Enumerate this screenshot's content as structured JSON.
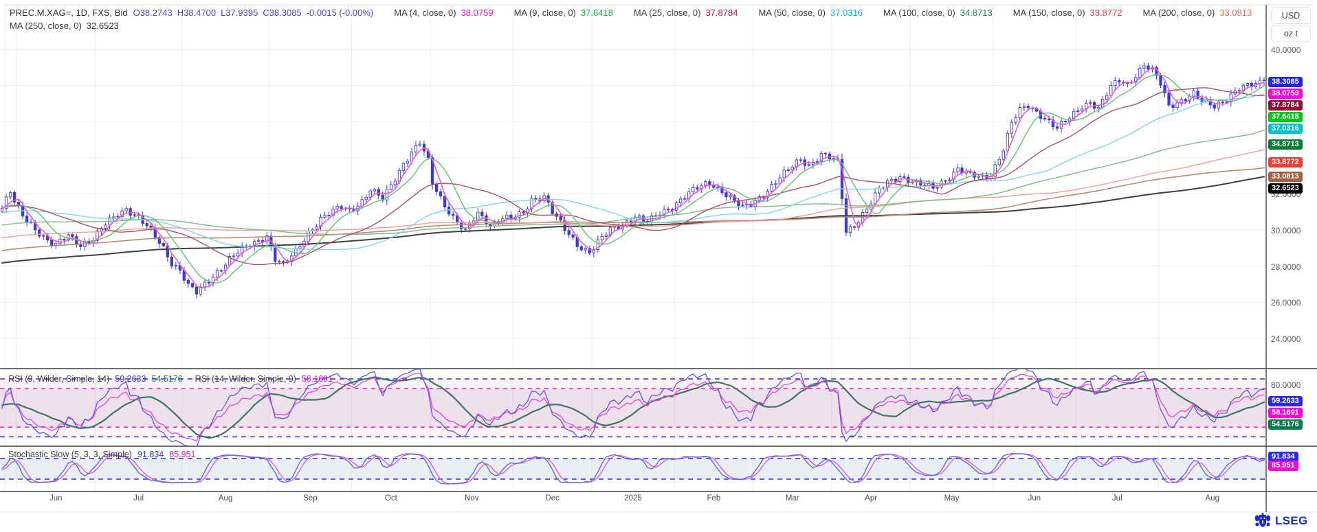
{
  "header": {
    "line1": [
      {
        "text": "PREC.M.XAG=, 1D, FXS, Bid",
        "color": "#2e2e2e",
        "gap": 8
      },
      {
        "text": "O38.2743",
        "color": "#4741e3",
        "gap": 7
      },
      {
        "text": "H38.4700",
        "color": "#4741e3",
        "gap": 7
      },
      {
        "text": "L37.9395",
        "color": "#4741e3",
        "gap": 7
      },
      {
        "text": "C38.3085",
        "color": "#4741e3",
        "gap": 7
      },
      {
        "text": "-0.0015 (-0.00%)",
        "color": "#4741e3",
        "gap": 30
      },
      {
        "text": "MA (4, close, 0)",
        "color": "#3a3a3a",
        "gap": 7
      },
      {
        "text": "38.0759",
        "color": "#f20fd4",
        "gap": 30
      },
      {
        "text": "MA (9, close, 0)",
        "color": "#3a3a3a",
        "gap": 7
      },
      {
        "text": "37.6418",
        "color": "#00b733",
        "gap": 30
      },
      {
        "text": "MA (25, close, 0)",
        "color": "#3a3a3a",
        "gap": 7
      },
      {
        "text": "37.8784",
        "color": "#c3103c",
        "gap": 30
      },
      {
        "text": "MA (50, close, 0)",
        "color": "#3a3a3a",
        "gap": 7
      },
      {
        "text": "37.0316",
        "color": "#00b6c9",
        "gap": 30
      },
      {
        "text": "MA (100, close, 0)",
        "color": "#3a3a3a",
        "gap": 7
      },
      {
        "text": "34.8713",
        "color": "#0c9140",
        "gap": 30
      },
      {
        "text": "MA (150, close, 0)",
        "color": "#3a3a3a",
        "gap": 7
      },
      {
        "text": "33.8772",
        "color": "#f04343",
        "gap": 30
      },
      {
        "text": "MA (200, close, 0)",
        "color": "#3a3a3a",
        "gap": 7
      },
      {
        "text": "33.0813",
        "color": "#e2714b",
        "gap": 0
      }
    ],
    "line2": [
      {
        "text": "MA (250, close, 0)",
        "color": "#3a3a3a",
        "gap": 7
      },
      {
        "text": "32.6523",
        "color": "#2e2e2e",
        "gap": 0
      }
    ]
  },
  "axis": {
    "currency": "USD",
    "unit": "oz t",
    "price_ticks": [
      {
        "label": "40.0000",
        "value": 40
      },
      {
        "label": "32.0000",
        "value": 32
      },
      {
        "label": "30.0000",
        "value": 30
      },
      {
        "label": "28.0000",
        "value": 28
      },
      {
        "label": "26.0000",
        "value": 26
      },
      {
        "label": "24.0000",
        "value": 24
      }
    ],
    "rsi_tick": {
      "label": "80.0000",
      "value": 80
    }
  },
  "badges": {
    "main": [
      {
        "label": "38.3085",
        "color": "#1f1fff"
      },
      {
        "label": "38.0759",
        "color": "#ff00e0"
      },
      {
        "label": "37.8784",
        "color": "#8e1236"
      },
      {
        "label": "37.6418",
        "color": "#00c614"
      },
      {
        "label": "37.0316",
        "color": "#00c3cf"
      },
      {
        "label": "34.8713",
        "color": "#067d33"
      },
      {
        "label": "33.8772",
        "color": "#f23c34"
      },
      {
        "label": "33.0813",
        "color": "#a65f45"
      },
      {
        "label": "32.6523",
        "color": "#000000"
      }
    ],
    "rsi": [
      {
        "label": "59.2633",
        "color": "#2a2af0"
      },
      {
        "label": "58.1691",
        "color": "#ff00dd"
      },
      {
        "label": "54.5176",
        "color": "#067d4a"
      }
    ],
    "stoch": [
      {
        "label": "91.834",
        "color": "#2a2af0"
      },
      {
        "label": "85.951",
        "color": "#ff00dd"
      }
    ]
  },
  "rsi_header": [
    {
      "text": "RSI (9, Wilder, Simple, 14)",
      "color": "#3c3c3c",
      "gap": 8
    },
    {
      "text": "59.2633",
      "color": "#2f2fe8",
      "gap": 8
    },
    {
      "text": "54.5176",
      "color": "#1d7a4e",
      "gap": 18
    },
    {
      "text": "RSI (14, Wilder, Simple, 9)",
      "color": "#3c3c3c",
      "gap": 8
    },
    {
      "text": "58.1691",
      "color": "#ea16ca",
      "gap": 0
    }
  ],
  "stoch_header": [
    {
      "text": "Stochastic Slow (5, 3, 3, Simple)",
      "color": "#3c3c3c",
      "gap": 8
    },
    {
      "text": "91.834",
      "color": "#2f2fe8",
      "gap": 8
    },
    {
      "text": "85.951",
      "color": "#ea16ca",
      "gap": 0
    }
  ],
  "logo": {
    "text": "LSEG"
  },
  "chart_data": {
    "type": "candlestick",
    "instrument": {
      "symbol": "PREC.M.XAG=",
      "interval": "1D",
      "source": "FXS",
      "field": "Bid"
    },
    "last": {
      "o": 38.2743,
      "h": 38.47,
      "l": 37.9395,
      "c": 38.3085,
      "change": "-0.0015 (-0.00%)"
    },
    "ylim": [
      22.3,
      41.5
    ],
    "grid_step": 2,
    "lead_days": 4,
    "months": [
      {
        "label": "Jun",
        "days": 19
      },
      {
        "label": "Jul",
        "days": 21
      },
      {
        "label": "Aug",
        "days": 21
      },
      {
        "label": "Sep",
        "days": 20
      },
      {
        "label": "Oct",
        "days": 19
      },
      {
        "label": "Nov",
        "days": 20
      },
      {
        "label": "Dec",
        "days": 19
      },
      {
        "label": "2025",
        "days": 20
      },
      {
        "label": "Feb",
        "days": 19
      },
      {
        "label": "Mar",
        "days": 19
      },
      {
        "label": "Apr",
        "days": 19
      },
      {
        "label": "May",
        "days": 20
      },
      {
        "label": "Jun",
        "days": 20
      },
      {
        "label": "Jul",
        "days": 20
      },
      {
        "label": "Aug",
        "days": 26
      }
    ],
    "lead_anchors": [
      [
        -280,
        24.2
      ],
      [
        -255,
        24.7
      ],
      [
        -230,
        25.3
      ],
      [
        -205,
        25.9
      ],
      [
        -180,
        26.6
      ],
      [
        -155,
        27.3
      ],
      [
        -130,
        28.0
      ],
      [
        -105,
        28.7
      ],
      [
        -80,
        29.4
      ],
      [
        -60,
        30.0
      ],
      [
        -40,
        30.6
      ],
      [
        -25,
        31.0
      ],
      [
        -12,
        31.4
      ],
      [
        -1,
        31.2
      ]
    ],
    "anchors": [
      [
        0,
        31.2
      ],
      [
        2,
        32.1
      ],
      [
        3,
        31.5
      ],
      [
        5,
        30.8
      ],
      [
        8,
        30.1
      ],
      [
        11,
        29.4
      ],
      [
        13,
        29.1
      ],
      [
        16,
        29.7
      ],
      [
        19,
        29.2
      ],
      [
        22,
        29.5
      ],
      [
        25,
        30.3
      ],
      [
        28,
        30.9
      ],
      [
        30,
        31.2
      ],
      [
        33,
        30.7
      ],
      [
        36,
        29.9
      ],
      [
        39,
        29.0
      ],
      [
        41,
        28.2
      ],
      [
        43,
        27.8
      ],
      [
        45,
        26.9
      ],
      [
        47,
        26.5
      ],
      [
        50,
        27.2
      ],
      [
        52,
        27.7
      ],
      [
        55,
        28.4
      ],
      [
        58,
        28.9
      ],
      [
        61,
        29.3
      ],
      [
        64,
        29.7
      ],
      [
        66,
        28.4
      ],
      [
        68,
        28.0
      ],
      [
        71,
        28.8
      ],
      [
        74,
        29.9
      ],
      [
        77,
        30.6
      ],
      [
        80,
        31.0
      ],
      [
        82,
        31.3
      ],
      [
        84,
        31.1
      ],
      [
        87,
        31.6
      ],
      [
        89,
        32.2
      ],
      [
        92,
        31.7
      ],
      [
        94,
        32.5
      ],
      [
        97,
        33.7
      ],
      [
        99,
        34.3
      ],
      [
        101,
        34.8
      ],
      [
        103,
        33.8
      ],
      [
        104,
        32.6
      ],
      [
        107,
        31.4
      ],
      [
        110,
        30.4
      ],
      [
        112,
        29.9
      ],
      [
        115,
        30.9
      ],
      [
        118,
        30.3
      ],
      [
        121,
        30.7
      ],
      [
        123,
        30.6
      ],
      [
        126,
        30.9
      ],
      [
        128,
        31.7
      ],
      [
        131,
        31.9
      ],
      [
        133,
        31.0
      ],
      [
        136,
        30.0
      ],
      [
        139,
        29.2
      ],
      [
        142,
        28.8
      ],
      [
        144,
        29.3
      ],
      [
        147,
        30.0
      ],
      [
        150,
        30.3
      ],
      [
        153,
        30.8
      ],
      [
        156,
        30.4
      ],
      [
        159,
        30.9
      ],
      [
        162,
        31.3
      ],
      [
        165,
        31.9
      ],
      [
        168,
        32.3
      ],
      [
        171,
        32.6
      ],
      [
        174,
        32.2
      ],
      [
        177,
        31.6
      ],
      [
        179,
        31.2
      ],
      [
        181,
        31.4
      ],
      [
        184,
        32.0
      ],
      [
        187,
        32.7
      ],
      [
        190,
        33.3
      ],
      [
        193,
        33.9
      ],
      [
        195,
        33.6
      ],
      [
        198,
        34.2
      ],
      [
        200,
        34.0
      ],
      [
        202,
        33.7
      ],
      [
        204,
        29.9
      ],
      [
        206,
        30.3
      ],
      [
        209,
        31.2
      ],
      [
        212,
        32.2
      ],
      [
        214,
        32.6
      ],
      [
        217,
        33.0
      ],
      [
        219,
        32.8
      ],
      [
        222,
        32.5
      ],
      [
        225,
        32.3
      ],
      [
        228,
        32.8
      ],
      [
        231,
        33.4
      ],
      [
        234,
        33.0
      ],
      [
        237,
        32.9
      ],
      [
        239,
        33.1
      ],
      [
        242,
        34.5
      ],
      [
        244,
        35.9
      ],
      [
        246,
        36.6
      ],
      [
        248,
        36.9
      ],
      [
        251,
        36.4
      ],
      [
        253,
        36.0
      ],
      [
        255,
        35.6
      ],
      [
        258,
        36.2
      ],
      [
        261,
        36.9
      ],
      [
        263,
        37.1
      ],
      [
        265,
        36.7
      ],
      [
        268,
        37.9
      ],
      [
        270,
        38.3
      ],
      [
        272,
        38.1
      ],
      [
        274,
        38.6
      ],
      [
        276,
        39.1
      ],
      [
        278,
        38.8
      ],
      [
        280,
        38.1
      ],
      [
        282,
        36.9
      ],
      [
        285,
        37.2
      ],
      [
        288,
        37.5
      ],
      [
        290,
        37.1
      ],
      [
        293,
        36.9
      ],
      [
        296,
        37.3
      ],
      [
        299,
        37.8
      ],
      [
        302,
        38.0
      ],
      [
        305,
        38.31
      ]
    ],
    "candle": {
      "up": "#ffffff",
      "down": "#3b3ccc",
      "border": "#3b3ccc"
    },
    "mas": [
      {
        "period": 250,
        "color": "#404040",
        "value": 32.6523,
        "width": 2
      },
      {
        "period": 200,
        "color": "#ba8a71",
        "value": 33.0813,
        "width": 1.6
      },
      {
        "period": 150,
        "color": "#f59d95",
        "value": 33.8772,
        "width": 1.4
      },
      {
        "period": 100,
        "color": "#7cba83",
        "value": 34.8713,
        "width": 1.4
      },
      {
        "period": 50,
        "color": "#79d7e6",
        "value": 37.0316,
        "width": 1.4
      },
      {
        "period": 25,
        "color": "#ad4f66",
        "value": 37.8784,
        "width": 1.4
      },
      {
        "period": 9,
        "color": "#60c46e",
        "value": 37.6418,
        "width": 1.4
      },
      {
        "period": 4,
        "color": "#f556d2",
        "value": 38.0759,
        "width": 1.6
      }
    ],
    "rsi": {
      "range": [
        11,
        90
      ],
      "bands_blue": [
        80,
        20
      ],
      "bands_magenta": [
        70,
        30
      ],
      "values": {
        "rsi9": 59.2633,
        "signal14": 54.5176,
        "rsi14": 58.1691
      },
      "colors": {
        "rsi9": "#5e55e6",
        "rsi14": "#ef3fd8",
        "signal": "#37795c",
        "dash_blue": "#2929e8",
        "dash_magenta": "#e818c4"
      }
    },
    "stochastic": {
      "range": [
        -16,
        114
      ],
      "bands_blue": [
        80,
        20
      ],
      "values": {
        "k": 91.834,
        "d": 85.951
      },
      "colors": {
        "k": "#5b68ee",
        "d": "#e558da",
        "dash_blue": "#2929e8"
      }
    }
  }
}
